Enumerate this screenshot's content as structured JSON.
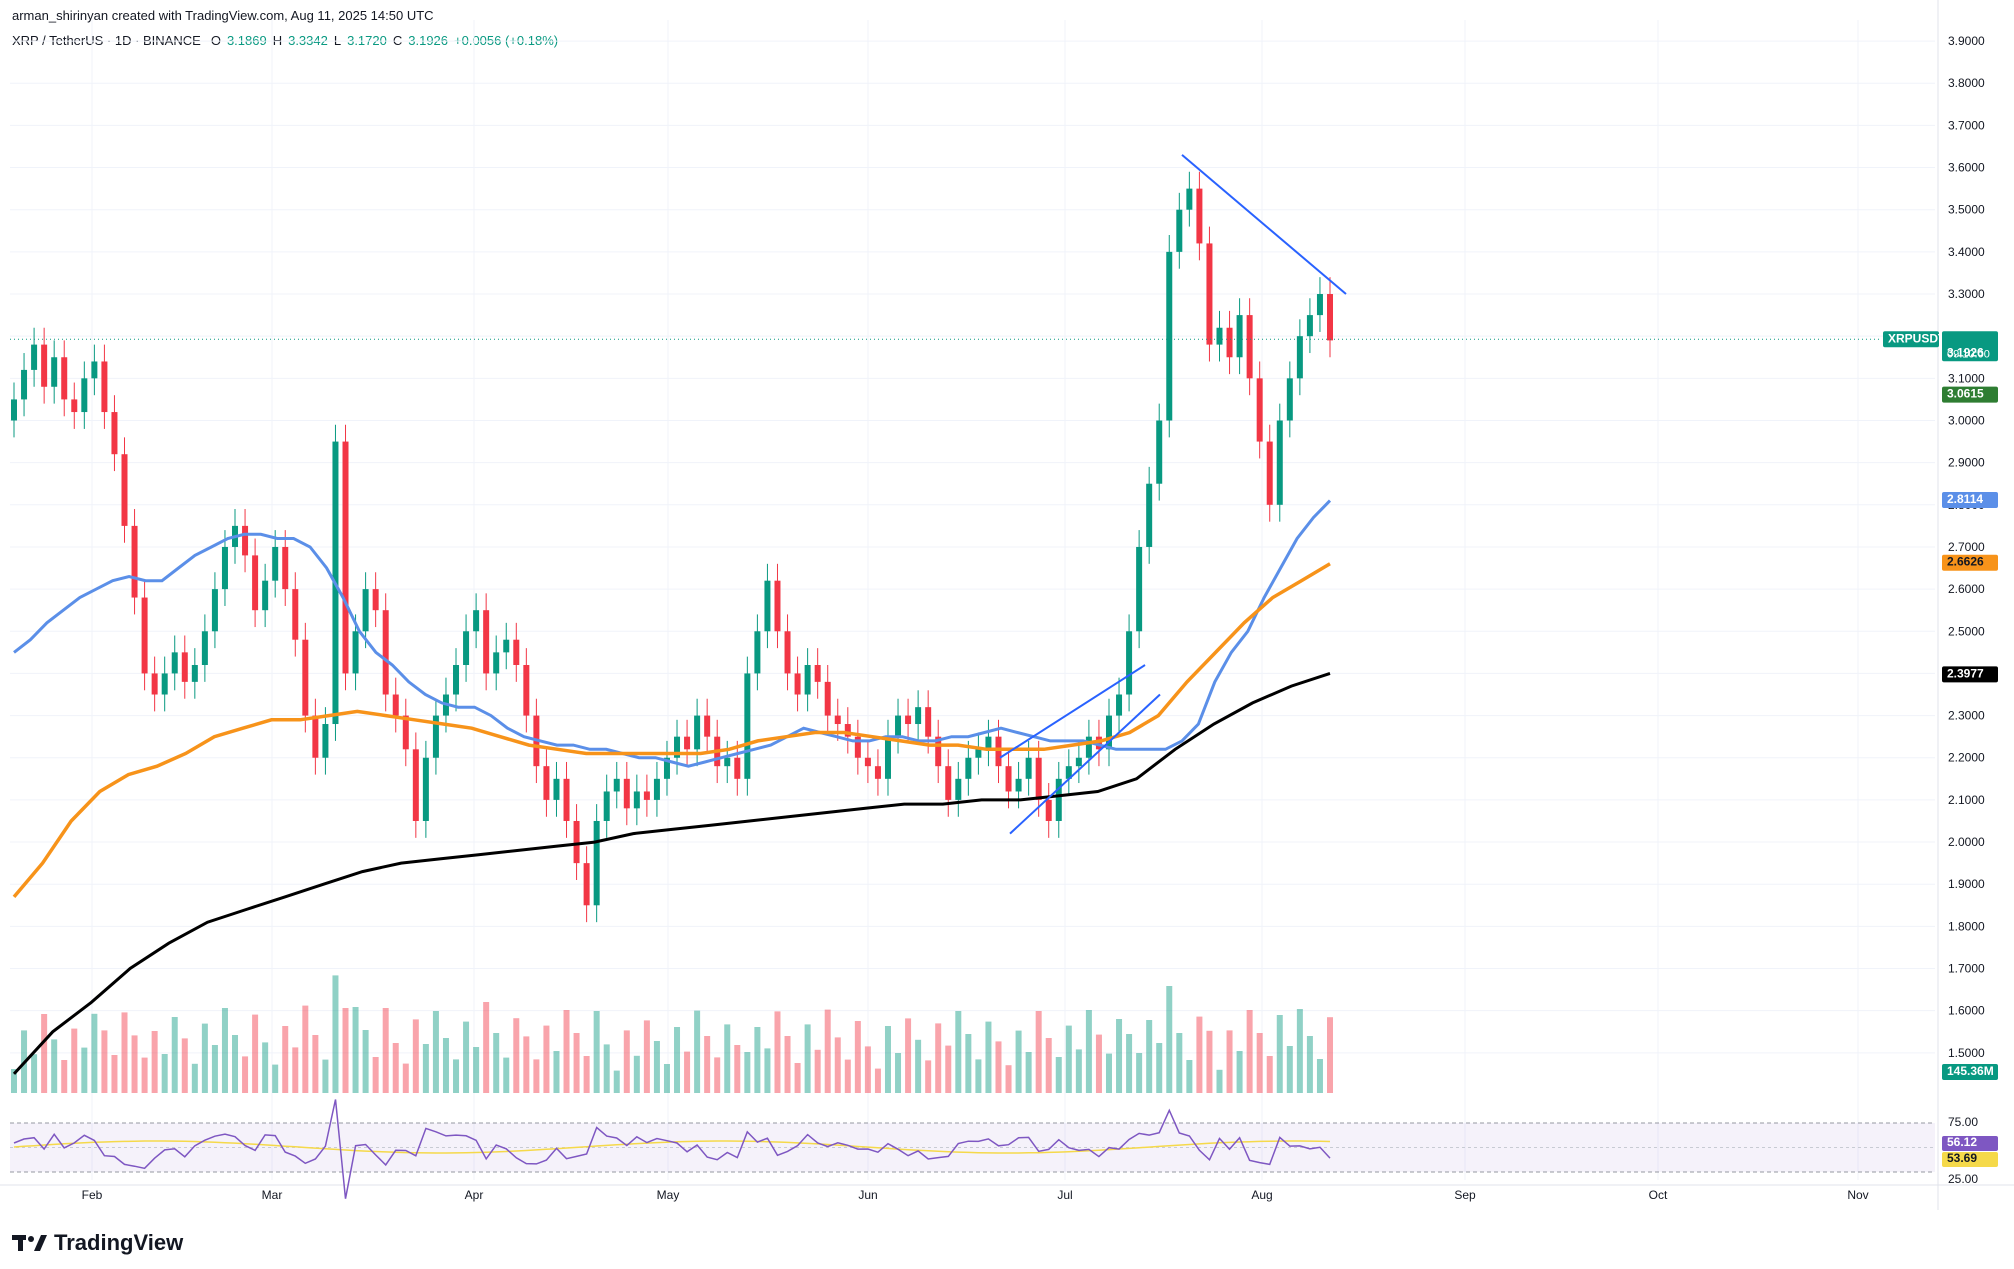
{
  "attribution": "arman_shirinyan created with TradingView.com, Aug 11, 2025 14:50 UTC",
  "legend": {
    "symbol": "XRP / TetherUS · 1D · BINANCE",
    "open_label": "O",
    "open": "3.1869",
    "high_label": "H",
    "high": "3.3342",
    "low_label": "L",
    "low": "3.1720",
    "close_label": "C",
    "close": "3.1926",
    "change": "+0.0056 (+0.18%)"
  },
  "brand": "TradingView",
  "colors": {
    "up": "#089981",
    "down": "#f23645",
    "ma20": "#4caf50",
    "ma50": "#5b8fe8",
    "ma100": "#f7931a",
    "ma200": "#000000",
    "rsi": "#7e57c2",
    "rsi_ma": "#f5d94a",
    "trend": "#2962ff"
  },
  "chart_data": {
    "type": "line",
    "title": "",
    "x_labels": [
      "Feb",
      "Mar",
      "Apr",
      "May",
      "Jun",
      "Jul",
      "Aug",
      "Sep",
      "Oct",
      "Nov"
    ],
    "y_ticks": [
      "3.9000",
      "3.8000",
      "3.7000",
      "3.6000",
      "3.5000",
      "3.4000",
      "3.3000",
      "3.2000",
      "3.1000",
      "3.0000",
      "2.9000",
      "2.8000",
      "2.7000",
      "2.6000",
      "2.5000",
      "2.4000",
      "2.3000",
      "2.2000",
      "2.1000",
      "2.0000",
      "1.9000",
      "1.8000",
      "1.7000",
      "1.6000",
      "1.5000"
    ],
    "ylim": [
      1.4,
      3.95
    ],
    "y_tick_values": [
      3.9,
      3.8,
      3.7,
      3.6,
      3.5,
      3.4,
      3.3,
      3.2,
      3.1,
      3.0,
      2.9,
      2.8,
      2.7,
      2.6,
      2.5,
      2.4,
      2.3,
      2.2,
      2.1,
      2.0,
      1.9,
      1.8,
      1.7,
      1.6,
      1.5
    ],
    "candles_close": [
      3.05,
      3.12,
      3.18,
      3.08,
      3.15,
      3.05,
      3.02,
      3.1,
      3.14,
      3.02,
      2.92,
      2.75,
      2.58,
      2.4,
      2.35,
      2.4,
      2.45,
      2.38,
      2.42,
      2.5,
      2.6,
      2.7,
      2.75,
      2.68,
      2.55,
      2.62,
      2.7,
      2.6,
      2.48,
      2.3,
      2.2,
      2.28,
      2.95,
      2.4,
      2.5,
      2.6,
      2.55,
      2.35,
      2.3,
      2.22,
      2.05,
      2.2,
      2.3,
      2.35,
      2.42,
      2.5,
      2.55,
      2.4,
      2.45,
      2.48,
      2.42,
      2.3,
      2.18,
      2.1,
      2.15,
      2.05,
      1.95,
      1.85,
      2.05,
      2.12,
      2.15,
      2.08,
      2.12,
      2.1,
      2.15,
      2.2,
      2.25,
      2.22,
      2.3,
      2.25,
      2.18,
      2.2,
      2.15,
      2.4,
      2.5,
      2.62,
      2.5,
      2.4,
      2.35,
      2.42,
      2.38,
      2.3,
      2.28,
      2.25,
      2.2,
      2.18,
      2.15,
      2.25,
      2.3,
      2.28,
      2.32,
      2.25,
      2.18,
      2.1,
      2.15,
      2.2,
      2.22,
      2.25,
      2.18,
      2.12,
      2.15,
      2.2,
      2.1,
      2.05,
      2.15,
      2.18,
      2.2,
      2.25,
      2.22,
      2.3,
      2.35,
      2.5,
      2.7,
      2.85,
      3.0,
      3.4,
      3.5,
      3.55,
      3.42,
      3.18,
      3.22,
      3.15,
      3.25,
      3.1,
      2.95,
      2.8,
      3.0,
      3.1,
      3.2,
      3.25,
      3.3,
      3.19
    ],
    "candles_open": [
      3.0,
      3.05,
      3.12,
      3.18,
      3.08,
      3.15,
      3.05,
      3.02,
      3.1,
      3.14,
      3.02,
      2.92,
      2.75,
      2.58,
      2.4,
      2.35,
      2.4,
      2.45,
      2.38,
      2.42,
      2.5,
      2.6,
      2.7,
      2.75,
      2.68,
      2.55,
      2.62,
      2.7,
      2.6,
      2.48,
      2.3,
      2.2,
      2.28,
      2.95,
      2.4,
      2.5,
      2.6,
      2.55,
      2.35,
      2.3,
      2.22,
      2.05,
      2.2,
      2.3,
      2.35,
      2.42,
      2.5,
      2.55,
      2.4,
      2.45,
      2.48,
      2.42,
      2.3,
      2.18,
      2.1,
      2.15,
      2.05,
      1.95,
      1.85,
      2.05,
      2.12,
      2.15,
      2.08,
      2.12,
      2.1,
      2.15,
      2.2,
      2.25,
      2.22,
      2.3,
      2.25,
      2.18,
      2.2,
      2.15,
      2.4,
      2.5,
      2.62,
      2.5,
      2.4,
      2.35,
      2.42,
      2.38,
      2.3,
      2.28,
      2.25,
      2.2,
      2.18,
      2.15,
      2.25,
      2.3,
      2.28,
      2.32,
      2.25,
      2.18,
      2.1,
      2.15,
      2.2,
      2.22,
      2.25,
      2.18,
      2.12,
      2.15,
      2.2,
      2.1,
      2.05,
      2.15,
      2.18,
      2.2,
      2.25,
      2.22,
      2.3,
      2.35,
      2.5,
      2.7,
      2.85,
      3.0,
      3.4,
      3.5,
      3.55,
      3.42,
      3.18,
      3.22,
      3.15,
      3.25,
      3.1,
      2.95,
      2.8,
      3.0,
      3.1,
      3.2,
      3.25,
      3.3
    ],
    "series": [
      {
        "values": [
          2.45,
          2.48,
          2.52,
          2.55,
          2.58,
          2.6,
          2.62,
          2.63,
          2.62,
          2.62,
          2.65,
          2.68,
          2.7,
          2.72,
          2.73,
          2.73,
          2.72,
          2.72,
          2.7,
          2.65,
          2.58,
          2.5,
          2.45,
          2.42,
          2.38,
          2.35,
          2.33,
          2.32,
          2.32,
          2.3,
          2.27,
          2.25,
          2.24,
          2.23,
          2.23,
          2.22,
          2.22,
          2.21,
          2.2,
          2.2,
          2.19,
          2.18,
          2.19,
          2.2,
          2.21,
          2.22,
          2.23,
          2.25,
          2.27,
          2.26,
          2.25,
          2.24,
          2.24,
          2.25,
          2.25,
          2.24,
          2.24,
          2.25,
          2.25,
          2.26,
          2.27,
          2.26,
          2.25,
          2.24,
          2.24,
          2.24,
          2.23,
          2.22,
          2.22,
          2.22,
          2.22,
          2.24,
          2.28,
          2.38,
          2.45,
          2.5,
          2.58,
          2.65,
          2.72,
          2.77,
          2.81
        ]
      },
      {
        "values": [
          1.87,
          1.95,
          2.05,
          2.12,
          2.16,
          2.18,
          2.21,
          2.25,
          2.27,
          2.29,
          2.29,
          2.3,
          2.31,
          2.3,
          2.29,
          2.28,
          2.27,
          2.25,
          2.23,
          2.22,
          2.21,
          2.21,
          2.21,
          2.21,
          2.21,
          2.22,
          2.24,
          2.25,
          2.26,
          2.26,
          2.25,
          2.24,
          2.23,
          2.23,
          2.22,
          2.22,
          2.22,
          2.23,
          2.24,
          2.26,
          2.3,
          2.38,
          2.45,
          2.52,
          2.58,
          2.62,
          2.66
        ]
      },
      {
        "values": [
          1.45,
          1.55,
          1.62,
          1.7,
          1.76,
          1.81,
          1.84,
          1.87,
          1.9,
          1.93,
          1.95,
          1.96,
          1.97,
          1.98,
          1.99,
          2.0,
          2.02,
          2.03,
          2.04,
          2.05,
          2.06,
          2.07,
          2.08,
          2.09,
          2.09,
          2.1,
          2.1,
          2.11,
          2.12,
          2.15,
          2.22,
          2.28,
          2.33,
          2.37,
          2.4
        ]
      }
    ],
    "price_labels": {
      "current_symbol": "XRPUSDT",
      "current": "3.1926",
      "countdown": "09:10:00",
      "ma20": "3.0615",
      "ma50": "2.8114",
      "ma100": "2.6626",
      "ma200": "2.3977",
      "volume": "145.36M"
    },
    "rsi": {
      "ticks": [
        "75.00",
        "25.00"
      ],
      "values_label": "56.12",
      "ma_label": "53.69"
    }
  }
}
